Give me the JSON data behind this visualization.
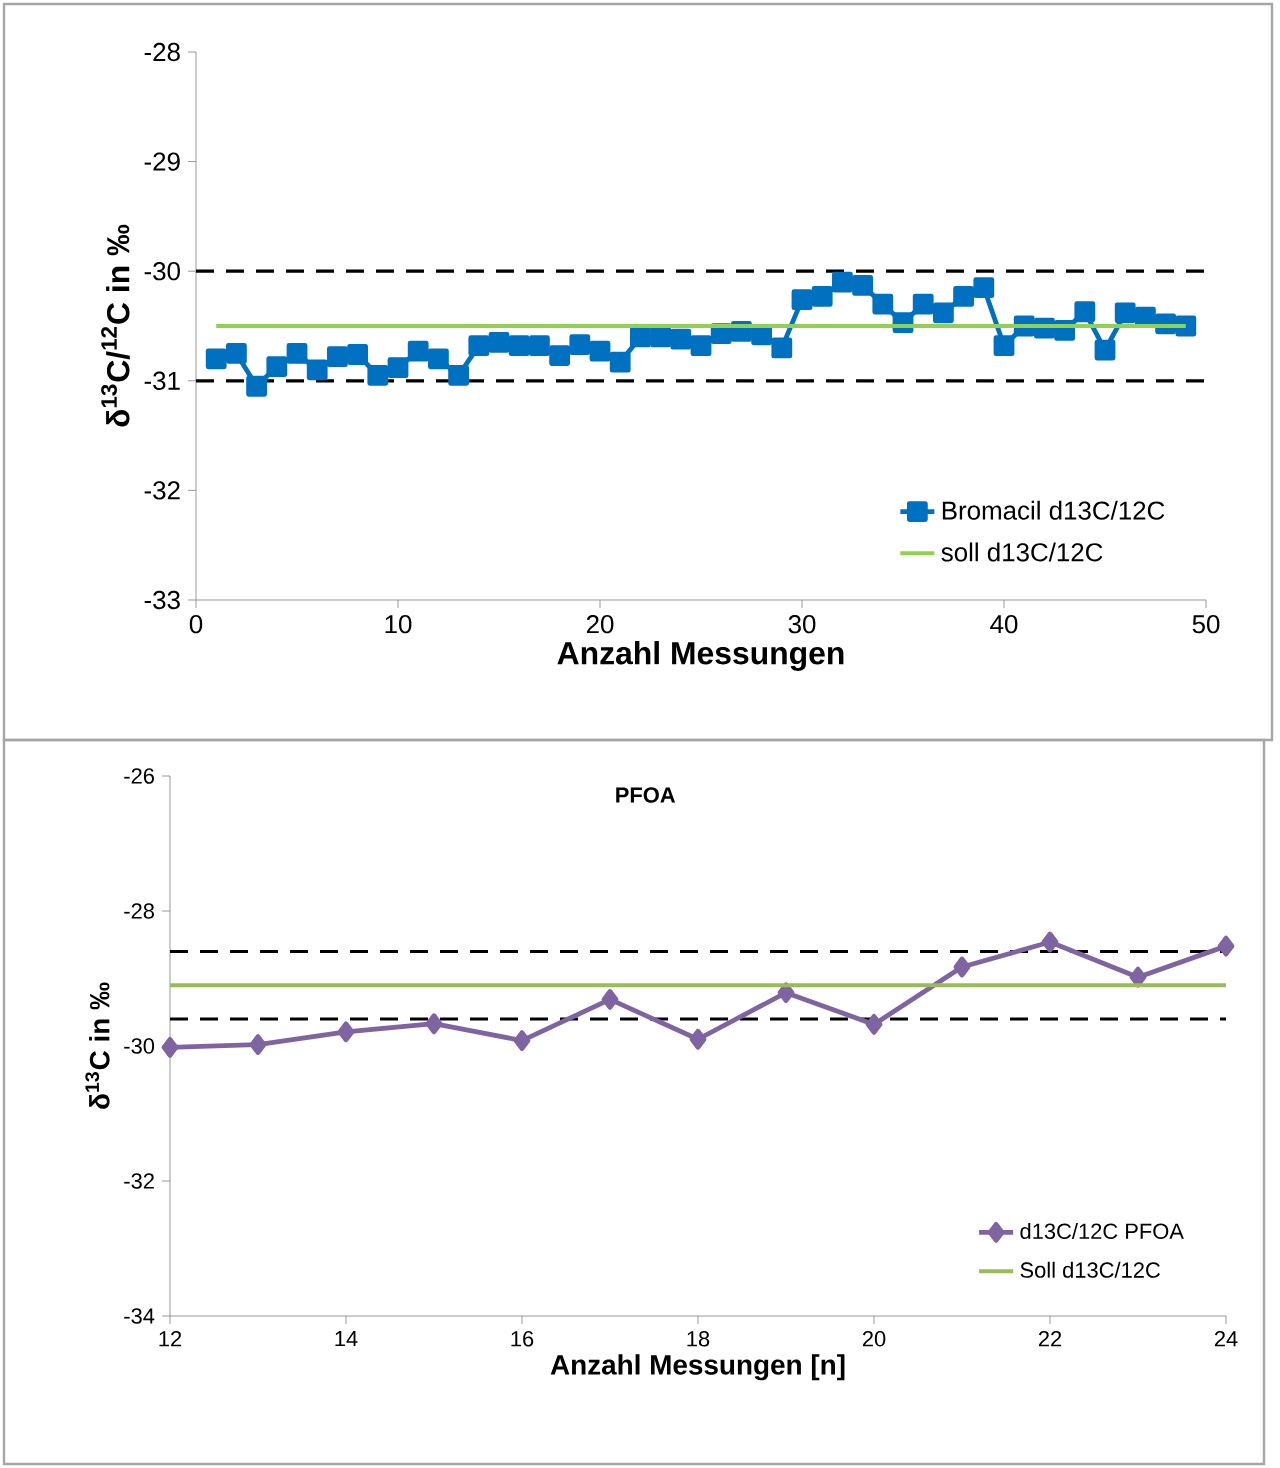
{
  "chart_data": [
    {
      "type": "line",
      "xlabel": "Anzahl Messungen",
      "ylabel": "δ$^{13}$C/$^{12}$C in ‰",
      "xlim": [
        0,
        50
      ],
      "ylim": [
        -33,
        -28
      ],
      "xticks": [
        0,
        10,
        20,
        30,
        40,
        50
      ],
      "yticks": [
        -33,
        -32,
        -31,
        -30,
        -29,
        -28
      ],
      "marker": "square",
      "legend": "bottom right",
      "grid": false,
      "series": [
        {
          "name": "Bromacil d13C/12C",
          "color": "#0070c0",
          "x": [
            1,
            2,
            3,
            4,
            5,
            6,
            7,
            8,
            9,
            10,
            11,
            12,
            13,
            14,
            15,
            16,
            17,
            18,
            19,
            20,
            21,
            22,
            23,
            24,
            25,
            26,
            27,
            28,
            29,
            30,
            31,
            32,
            33,
            34,
            35,
            36,
            37,
            38,
            39,
            40,
            41,
            42,
            43,
            44,
            45,
            46,
            47,
            48,
            49
          ],
          "values": [
            -30.8,
            -30.75,
            -31.05,
            -30.87,
            -30.75,
            -30.9,
            -30.78,
            -30.76,
            -30.95,
            -30.88,
            -30.73,
            -30.8,
            -30.95,
            -30.68,
            -30.65,
            -30.68,
            -30.68,
            -30.77,
            -30.67,
            -30.73,
            -30.83,
            -30.6,
            -30.6,
            -30.62,
            -30.68,
            -30.57,
            -30.55,
            -30.58,
            -30.7,
            -30.26,
            -30.23,
            -30.1,
            -30.13,
            -30.3,
            -30.47,
            -30.3,
            -30.38,
            -30.23,
            -30.15,
            -30.68,
            -30.5,
            -30.52,
            -30.54,
            -30.37,
            -30.72,
            -30.38,
            -30.42,
            -30.48,
            -30.5
          ]
        },
        {
          "name": "soll d13C/12C",
          "color": "#92d050",
          "marker": "none",
          "x": [
            1,
            49
          ],
          "values": [
            -30.5,
            -30.5
          ]
        }
      ],
      "ref_lines": [
        {
          "axis": "y",
          "value": -30,
          "color": "#000000",
          "line_style": "dashed"
        },
        {
          "axis": "y",
          "value": -31,
          "color": "#000000",
          "line_style": "dashed"
        }
      ]
    },
    {
      "type": "line",
      "title": "PFOA",
      "xlabel": "Anzahl Messungen [n]",
      "ylabel": "δ$^{13}$C in ‰",
      "xlim": [
        12,
        24
      ],
      "ylim": [
        -34,
        -26
      ],
      "xticks": [
        12,
        14,
        16,
        18,
        20,
        22,
        24
      ],
      "yticks": [
        -34,
        -32,
        -30,
        -28,
        -26
      ],
      "marker": "diamond",
      "legend": "bottom right",
      "grid": false,
      "series": [
        {
          "name": "d13C/12C PFOA",
          "color": "#8064a2",
          "x": [
            12,
            13,
            14,
            15,
            16,
            17,
            18,
            19,
            20,
            21,
            22,
            23,
            24
          ],
          "values": [
            -30.02,
            -29.98,
            -29.79,
            -29.67,
            -29.92,
            -29.31,
            -29.9,
            -29.21,
            -29.68,
            -28.83,
            -28.46,
            -28.98,
            -28.52
          ]
        },
        {
          "name": "Soll d13C/12C",
          "color": "#9bbb59",
          "marker": "none",
          "x": [
            12,
            24
          ],
          "values": [
            -29.1,
            -29.1
          ]
        }
      ],
      "ref_lines": [
        {
          "axis": "y",
          "value": -28.6,
          "color": "#000000",
          "line_style": "dashed"
        },
        {
          "axis": "y",
          "value": -29.6,
          "color": "#000000",
          "line_style": "dashed"
        }
      ]
    }
  ]
}
